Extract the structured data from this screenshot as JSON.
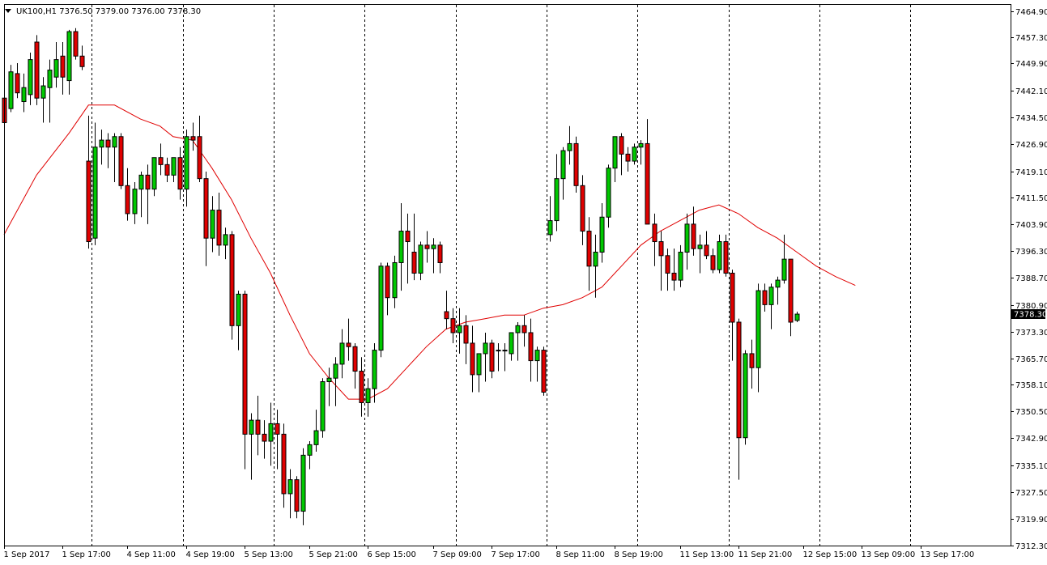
{
  "chart_data": {
    "type": "candlestick",
    "symbol": "UK100",
    "timeframe": "H1",
    "header_text": "UK100,H1  7376.50 7379.00 7376.00 7378.30",
    "menu_arrow_icon": "triangle-down-icon",
    "last_price": "7378.30",
    "ylim": [
      7312.3,
      7464.9
    ],
    "y_ticks": [
      "7464.90",
      "7457.30",
      "7449.90",
      "7442.10",
      "7434.50",
      "7426.90",
      "7419.10",
      "7411.50",
      "7403.90",
      "7396.30",
      "7388.70",
      "7380.90",
      "7373.30",
      "7365.70",
      "7358.10",
      "7350.50",
      "7342.90",
      "7335.10",
      "7327.50",
      "7319.90",
      "7312.30"
    ],
    "x_labels": [
      {
        "bar": 0,
        "label": "1 Sep 2017"
      },
      {
        "bar": 9,
        "label": "1 Sep 17:00"
      },
      {
        "bar": 19,
        "label": "4 Sep 11:00"
      },
      {
        "bar": 28,
        "label": "4 Sep 19:00"
      },
      {
        "bar": 37,
        "label": "5 Sep 13:00"
      },
      {
        "bar": 47,
        "label": "5 Sep 21:00"
      },
      {
        "bar": 56,
        "label": "6 Sep 15:00"
      },
      {
        "bar": 66,
        "label": "7 Sep 09:00"
      },
      {
        "bar": 75,
        "label": "7 Sep 17:00"
      },
      {
        "bar": 85,
        "label": "8 Sep 11:00"
      },
      {
        "bar": 94,
        "label": "8 Sep 19:00"
      },
      {
        "bar": 104,
        "label": "11 Sep 13:00"
      },
      {
        "bar": 113,
        "label": "11 Sep 21:00"
      },
      {
        "bar": 123,
        "label": "12 Sep 15:00"
      },
      {
        "bar": 132,
        "label": "13 Sep 09:00"
      },
      {
        "bar": 141,
        "label": "13 Sep 17:00"
      }
    ],
    "separators": [
      13.5,
      27.5,
      41.5,
      55.5,
      69.5,
      83.5,
      97.5,
      111.5,
      125.5,
      139.5
    ],
    "colors": {
      "bull": "#00c800",
      "bear": "#e00000",
      "wick": "#000000",
      "ma": "#e00000",
      "price_tag": "#000000",
      "background": "#ffffff"
    },
    "candles": [
      [
        7440.0,
        7441.5,
        7432.0,
        7433.0
      ],
      [
        7437.0,
        7449.5,
        7436.0,
        7447.5
      ],
      [
        7447.0,
        7450.0,
        7440.0,
        7441.5
      ],
      [
        7439.0,
        7447.0,
        7436.0,
        7443.0
      ],
      [
        7441.0,
        7453.0,
        7438.0,
        7451.0
      ],
      [
        7456.0,
        7458.0,
        7438.0,
        7440.0
      ],
      [
        7440.0,
        7446.0,
        7433.0,
        7443.5
      ],
      [
        7443.0,
        7451.0,
        7433.0,
        7448.0
      ],
      [
        7446.0,
        7456.0,
        7443.0,
        7451.0
      ],
      [
        7452.0,
        7456.0,
        7441.0,
        7446.0
      ],
      [
        7445.0,
        7459.5,
        7441.0,
        7459.0
      ],
      [
        7459.0,
        7460.0,
        7451.0,
        7452.0
      ],
      [
        7452.0,
        7455.0,
        7448.0,
        7449.0
      ],
      [
        7422.0,
        7435.0,
        7397.0,
        7399.0
      ],
      [
        7400.0,
        7433.0,
        7398.0,
        7426.0
      ],
      [
        7426.0,
        7431.0,
        7421.0,
        7428.0
      ],
      [
        7428.0,
        7430.0,
        7420.0,
        7426.0
      ],
      [
        7426.0,
        7430.0,
        7416.0,
        7429.0
      ],
      [
        7429.0,
        7430.0,
        7414.0,
        7415.0
      ],
      [
        7415.0,
        7420.0,
        7405.0,
        7407.0
      ],
      [
        7407.0,
        7416.0,
        7404.0,
        7414.0
      ],
      [
        7414.0,
        7419.0,
        7406.0,
        7418.0
      ],
      [
        7418.0,
        7421.0,
        7404.0,
        7414.0
      ],
      [
        7414.0,
        7423.0,
        7412.0,
        7423.0
      ],
      [
        7423.0,
        7427.0,
        7418.0,
        7421.0
      ],
      [
        7421.0,
        7423.0,
        7416.0,
        7418.0
      ],
      [
        7418.0,
        7423.0,
        7416.0,
        7423.0
      ],
      [
        7423.0,
        7426.0,
        7411.0,
        7414.0
      ],
      [
        7414.0,
        7431.0,
        7409.0,
        7429.0
      ],
      [
        7429.0,
        7433.0,
        7425.0,
        7428.0
      ],
      [
        7429.0,
        7435.0,
        7416.0,
        7417.0
      ],
      [
        7417.0,
        7419.0,
        7392.0,
        7400.0
      ],
      [
        7400.0,
        7412.0,
        7396.0,
        7408.0
      ],
      [
        7408.0,
        7413.0,
        7395.0,
        7398.0
      ],
      [
        7398.0,
        7403.0,
        7394.0,
        7401.0
      ],
      [
        7401.0,
        7402.0,
        7371.0,
        7375.0
      ],
      [
        7375.0,
        7385.0,
        7368.0,
        7384.0
      ],
      [
        7384.0,
        7385.0,
        7334.0,
        7344.0
      ],
      [
        7344.0,
        7350.0,
        7331.0,
        7348.0
      ],
      [
        7348.0,
        7355.0,
        7338.0,
        7344.0
      ],
      [
        7344.0,
        7348.0,
        7337.0,
        7342.0
      ],
      [
        7342.0,
        7353.0,
        7335.0,
        7347.0
      ],
      [
        7347.0,
        7351.0,
        7334.0,
        7344.0
      ],
      [
        7344.0,
        7347.0,
        7323.0,
        7327.0
      ],
      [
        7327.0,
        7334.0,
        7320.0,
        7331.0
      ],
      [
        7331.0,
        7332.0,
        7320.0,
        7322.0
      ],
      [
        7322.0,
        7340.0,
        7318.0,
        7338.0
      ],
      [
        7338.0,
        7342.0,
        7334.0,
        7341.0
      ],
      [
        7341.0,
        7351.0,
        7339.0,
        7345.0
      ],
      [
        7345.0,
        7360.0,
        7343.0,
        7359.0
      ],
      [
        7359.0,
        7363.0,
        7352.0,
        7360.0
      ],
      [
        7360.0,
        7366.0,
        7352.0,
        7364.0
      ],
      [
        7364.0,
        7374.0,
        7360.0,
        7370.0
      ],
      [
        7370.0,
        7377.0,
        7365.0,
        7369.0
      ],
      [
        7369.0,
        7370.0,
        7357.0,
        7362.0
      ],
      [
        7362.0,
        7366.0,
        7349.0,
        7353.0
      ],
      [
        7353.0,
        7360.0,
        7349.0,
        7357.0
      ],
      [
        7357.0,
        7370.0,
        7353.0,
        7368.0
      ],
      [
        7368.0,
        7393.0,
        7366.0,
        7392.0
      ],
      [
        7392.0,
        7393.0,
        7378.0,
        7383.0
      ],
      [
        7383.0,
        7395.0,
        7380.0,
        7393.0
      ],
      [
        7393.0,
        7410.0,
        7385.0,
        7402.0
      ],
      [
        7402.0,
        7407.0,
        7387.0,
        7399.0
      ],
      [
        7396.0,
        7407.0,
        7388.0,
        7390.0
      ],
      [
        7390.0,
        7399.0,
        7388.0,
        7398.0
      ],
      [
        7398.0,
        7402.0,
        7393.0,
        7397.0
      ],
      [
        7397.0,
        7400.0,
        7390.0,
        7398.0
      ],
      [
        7398.0,
        7399.0,
        7390.0,
        7393.0
      ],
      [
        7379.0,
        7385.0,
        7374.0,
        7377.0
      ],
      [
        7377.0,
        7380.0,
        7370.0,
        7373.0
      ],
      [
        7373.0,
        7380.0,
        7367.0,
        7375.0
      ],
      [
        7375.0,
        7378.0,
        7364.0,
        7370.0
      ],
      [
        7370.0,
        7375.0,
        7356.0,
        7361.0
      ],
      [
        7361.0,
        7366.0,
        7356.0,
        7367.0
      ],
      [
        7367.0,
        7373.0,
        7359.0,
        7370.0
      ],
      [
        7370.0,
        7371.0,
        7360.0,
        7362.0
      ],
      [
        7368.0,
        7370.0,
        7362.0,
        7368.0
      ],
      [
        7368.0,
        7370.0,
        7362.0,
        7368.0
      ],
      [
        7367.0,
        7373.0,
        7365.0,
        7373.0
      ],
      [
        7373.0,
        7376.0,
        7365.0,
        7375.0
      ],
      [
        7375.0,
        7378.0,
        7369.0,
        7373.0
      ],
      [
        7373.0,
        7377.0,
        7359.0,
        7365.0
      ],
      [
        7365.0,
        7369.0,
        7359.0,
        7368.0
      ],
      [
        7368.0,
        7369.0,
        7355.0,
        7356.0
      ],
      [
        7401.0,
        7412.0,
        7399.0,
        7405.0
      ],
      [
        7405.0,
        7424.0,
        7402.0,
        7417.0
      ],
      [
        7417.0,
        7426.0,
        7411.0,
        7425.0
      ],
      [
        7425.0,
        7432.0,
        7421.0,
        7427.0
      ],
      [
        7427.0,
        7429.0,
        7413.0,
        7415.0
      ],
      [
        7415.0,
        7418.0,
        7398.0,
        7402.0
      ],
      [
        7402.0,
        7406.0,
        7385.0,
        7392.0
      ],
      [
        7392.0,
        7401.0,
        7383.0,
        7396.0
      ],
      [
        7396.0,
        7410.0,
        7393.0,
        7406.0
      ],
      [
        7406.0,
        7421.0,
        7403.0,
        7420.0
      ],
      [
        7420.0,
        7429.0,
        7416.0,
        7429.0
      ],
      [
        7429.0,
        7430.0,
        7418.0,
        7424.0
      ],
      [
        7424.0,
        7426.0,
        7419.0,
        7422.0
      ],
      [
        7422.0,
        7427.0,
        7421.0,
        7426.0
      ],
      [
        7426.0,
        7428.0,
        7421.0,
        7427.0
      ],
      [
        7427.0,
        7434.0,
        7404.0,
        7404.0
      ],
      [
        7404.0,
        7407.0,
        7392.0,
        7399.0
      ],
      [
        7399.0,
        7402.0,
        7385.0,
        7395.0
      ],
      [
        7395.0,
        7397.0,
        7385.0,
        7390.0
      ],
      [
        7390.0,
        7397.0,
        7385.0,
        7388.0
      ],
      [
        7388.0,
        7398.0,
        7386.0,
        7396.0
      ],
      [
        7396.0,
        7407.0,
        7391.0,
        7404.0
      ],
      [
        7404.0,
        7409.0,
        7395.0,
        7397.0
      ],
      [
        7397.0,
        7401.0,
        7390.0,
        7398.0
      ],
      [
        7398.0,
        7402.0,
        7394.0,
        7395.0
      ],
      [
        7395.0,
        7397.0,
        7390.0,
        7391.0
      ],
      [
        7391.0,
        7401.0,
        7390.0,
        7399.0
      ],
      [
        7399.0,
        7401.0,
        7389.0,
        7390.0
      ],
      [
        7390.0,
        7391.0,
        7365.0,
        7376.0
      ],
      [
        7376.0,
        7377.0,
        7331.0,
        7343.0
      ],
      [
        7343.0,
        7368.0,
        7341.0,
        7367.0
      ],
      [
        7367.0,
        7371.0,
        7357.0,
        7363.0
      ],
      [
        7363.0,
        7387.0,
        7356.0,
        7385.0
      ],
      [
        7385.0,
        7387.0,
        7379.0,
        7381.0
      ],
      [
        7381.0,
        7387.0,
        7374.0,
        7386.0
      ],
      [
        7386.0,
        7389.0,
        7381.0,
        7388.0
      ],
      [
        7388.0,
        7401.0,
        7387.0,
        7394.0
      ],
      [
        7394.0,
        7394.0,
        7372.0,
        7376.0
      ],
      [
        7376.5,
        7379.0,
        7376.0,
        7378.3
      ]
    ],
    "ma": [
      [
        0,
        7401.0
      ],
      [
        5,
        7418.0
      ],
      [
        10,
        7430.0
      ],
      [
        13,
        7438.0
      ],
      [
        17,
        7438.0
      ],
      [
        21,
        7434.0
      ],
      [
        24,
        7432.0
      ],
      [
        26,
        7429.0
      ],
      [
        29,
        7428.0
      ],
      [
        32,
        7420.0
      ],
      [
        35,
        7411.0
      ],
      [
        38,
        7400.0
      ],
      [
        41,
        7390.0
      ],
      [
        44,
        7378.0
      ],
      [
        47,
        7367.0
      ],
      [
        50,
        7360.0
      ],
      [
        53,
        7354.0
      ],
      [
        56,
        7354.0
      ],
      [
        59,
        7357.0
      ],
      [
        62,
        7363.0
      ],
      [
        65,
        7369.0
      ],
      [
        68,
        7374.0
      ],
      [
        71,
        7376.0
      ],
      [
        74,
        7377.0
      ],
      [
        77,
        7378.0
      ],
      [
        80,
        7378.0
      ],
      [
        83,
        7380.0
      ],
      [
        86,
        7381.0
      ],
      [
        89,
        7383.0
      ],
      [
        92,
        7386.0
      ],
      [
        95,
        7392.0
      ],
      [
        98,
        7398.0
      ],
      [
        101,
        7402.0
      ],
      [
        104,
        7405.0
      ],
      [
        107,
        7408.0
      ],
      [
        110,
        7409.5
      ],
      [
        113,
        7407.0
      ],
      [
        116,
        7403.0
      ],
      [
        119,
        7400.0
      ],
      [
        122,
        7396.0
      ],
      [
        125,
        7392.0
      ],
      [
        128,
        7389.0
      ],
      [
        131,
        7386.5
      ]
    ]
  }
}
